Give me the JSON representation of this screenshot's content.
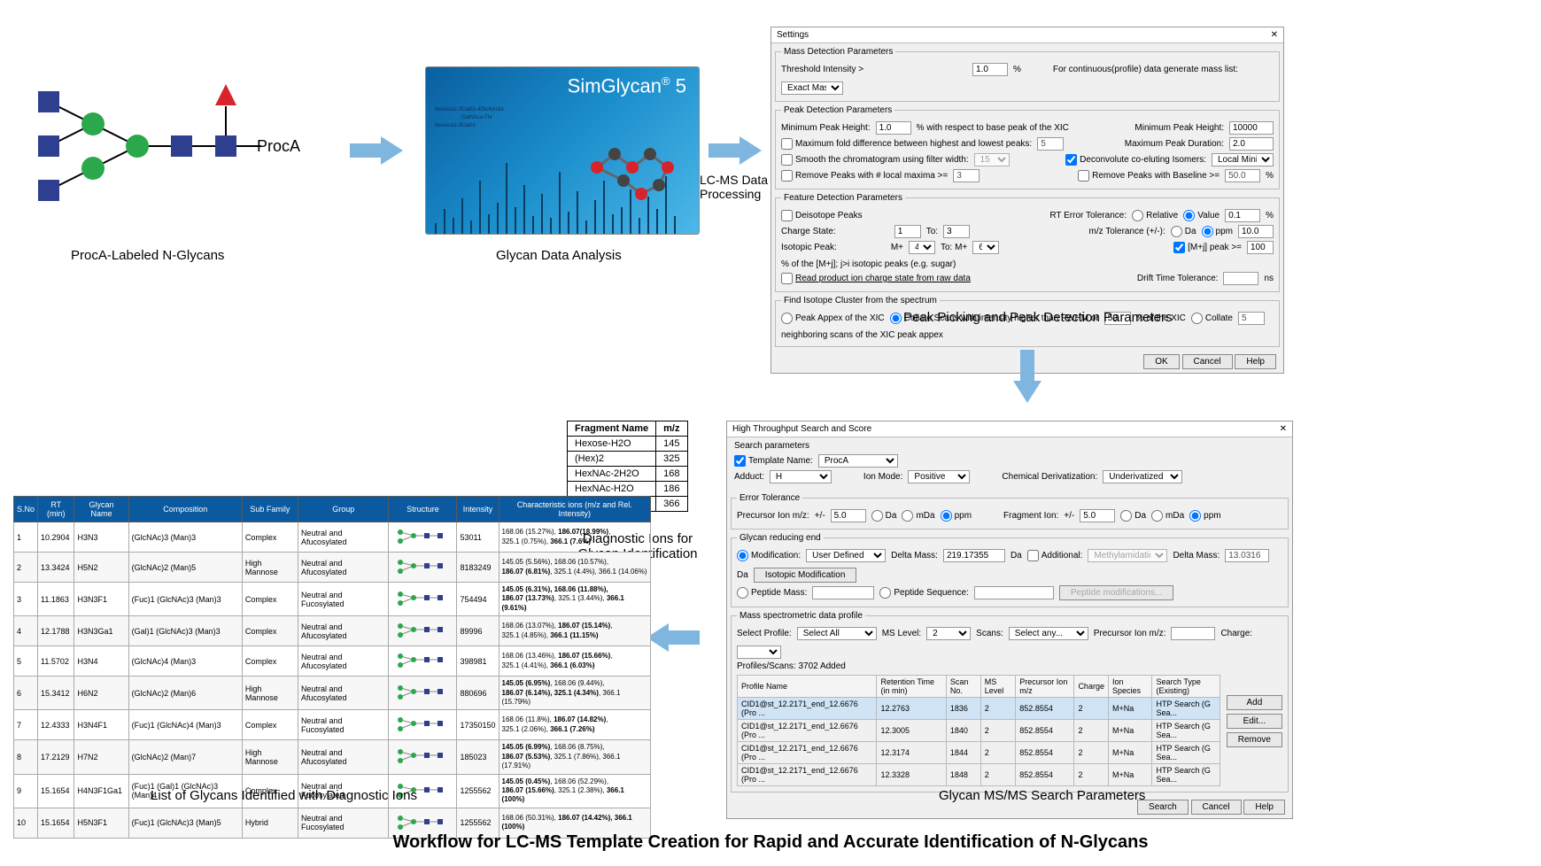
{
  "colors": {
    "hexnac": "#2e3f8f",
    "hex": "#2aa84b",
    "fuc": "#d8232a",
    "arrow": "#7fb6df",
    "dialog_bg": "#f0f0f0",
    "header": "#0b5aa0"
  },
  "title_main": "Workflow for LC-MS Template Creation for Rapid and Accurate Identification of N-Glycans",
  "proca": {
    "label": "ProcA",
    "caption": "ProcA-Labeled N-Glycans"
  },
  "simglycan": {
    "title_a": "SimGlycan",
    "title_b": "5",
    "reg": "®",
    "ms_labels": [
      "NeuAca2-3Galb1-4GlcNAcb1",
      "NeuAca2-3Galb1",
      "GalNAca-Thr"
    ],
    "bars": [
      12,
      28,
      18,
      40,
      15,
      60,
      22,
      35,
      80,
      30,
      55,
      20,
      45,
      18,
      70,
      25,
      48,
      15,
      38,
      60,
      22,
      30,
      50,
      18,
      42,
      28,
      65,
      20
    ],
    "caption": "Glycan Data Analysis",
    "mol_atoms": [
      [
        20,
        40
      ],
      [
        40,
        25
      ],
      [
        60,
        40
      ],
      [
        80,
        25
      ],
      [
        100,
        40
      ],
      [
        90,
        60
      ],
      [
        70,
        70
      ],
      [
        50,
        55
      ]
    ]
  },
  "lcms_label": "LC-MS Data Processing",
  "settings": {
    "title": "Settings",
    "mass_det": {
      "legend": "Mass Detection Parameters",
      "thresh_lbl": "Threshold Intensity  >",
      "thresh_val": "1.0",
      "thresh_unit": "%",
      "cont_lbl": "For continuous(profile) data generate mass list:",
      "cont_val": "Exact Mass"
    },
    "peak_det": {
      "legend": "Peak Detection Parameters",
      "r1": {
        "a": "Minimum Peak Height:",
        "av": "1.0",
        "au": "% with respect to base peak of the XIC",
        "b": "Minimum Peak Height:",
        "bv": "10000"
      },
      "r2": {
        "a": "Maximum fold difference between highest and lowest peaks:",
        "av": "5",
        "b": "Maximum Peak Duration:",
        "bv": "2.0"
      },
      "r3": {
        "a": "Smooth the chromatogram using filter width:",
        "av": "15",
        "b": "Deconvolute co-eluting Isomers:",
        "bv": "Local Minima"
      },
      "r4": {
        "a": "Remove Peaks with # local maxima  >=",
        "av": "3",
        "b": "Remove Peaks with Baseline  >=",
        "bv": "50.0",
        "bu": "%"
      }
    },
    "feat_det": {
      "legend": "Feature Detection Parameters",
      "deiso": "Deisotope Peaks",
      "rt_err": "RT Error Tolerance:",
      "rel": "Relative",
      "val": "Value",
      "rt_v": "0.1",
      "rt_u": "%",
      "chg": "Charge State:",
      "chg_a": "1",
      "chg_to": "To:",
      "chg_b": "3",
      "mz": "m/z Tolerance (+/-):",
      "da": "Da",
      "ppm": "ppm",
      "mz_v": "10.0",
      "iso": "Isotopic Peak:",
      "iso_a": "M+",
      "iso_av": "4",
      "iso_b": "To: M+",
      "iso_bv": "6",
      "mj": "[M+j] peak >=",
      "mj_v": "100",
      "mj_u": "% of the [M+j]; j>i isotopic peaks (e.g. sugar)",
      "read": "Read product ion charge state from raw data",
      "drift": "Drift Time Tolerance:",
      "drift_u": "ns"
    },
    "cluster": {
      "legend": "Find Isotope Cluster from the spectrum",
      "a": "Peak Appex of the XIC",
      "b": "Collate Scans with intensity higher than FWHM or",
      "bv": "50",
      "bu": "% of the XIC",
      "c": "Collate",
      "cv": "5",
      "cu": "neighboring scans of the XIC peak appex"
    },
    "buttons": {
      "ok": "OK",
      "cancel": "Cancel",
      "help": "Help"
    },
    "caption": "Peak Picking and Peak Detection Parameters"
  },
  "htp": {
    "title": "High Throughput Search and Score",
    "search_params": "Search parameters",
    "tmpl": "Template Name:",
    "tmpl_v": "ProcA",
    "adduct": "Adduct:",
    "adduct_v": "H",
    "ionmode": "Ion Mode:",
    "ionmode_v": "Positive",
    "chemder": "Chemical Derivatization:",
    "chemder_v": "Underivatized",
    "err": {
      "legend": "Error Tolerance",
      "pre": "Precursor Ion m/z:",
      "pm": "+/-",
      "pre_v": "5.0",
      "da": "Da",
      "mda": "mDa",
      "ppm": "ppm",
      "frag": "Fragment Ion:",
      "frag_v": "5.0"
    },
    "gly": {
      "legend": "Glycan reducing end",
      "mod": "Modification:",
      "mod_v": "User Defined",
      "dm": "Delta Mass:",
      "dm_v": "219.17355",
      "da": "Da",
      "add": "Additional:",
      "add_v": "Methylamidation",
      "dm2_v": "13.0316",
      "iso": "Isotopic Modification",
      "pep": "Peptide Mass:",
      "pseq": "Peptide Sequence:",
      "pmod": "Peptide modifications..."
    },
    "msdp": {
      "legend": "Mass spectrometric data profile",
      "sel": "Select Profile:",
      "sel_v": "Select All",
      "msl": "MS Level:",
      "msl_v": "2",
      "scans": "Scans:",
      "scans_v": "Select any...",
      "pre": "Precursor Ion m/z:",
      "chg": "Charge:",
      "added": "Profiles/Scans:  3702 Added"
    },
    "tbl": {
      "headers": [
        "Profile Name",
        "Retention Time (in min)",
        "Scan No.",
        "MS Level",
        "Precursor Ion m/z",
        "Charge",
        "Ion Species",
        "Search Type (Existing)"
      ],
      "rows": [
        [
          "CID1@st_12.2171_end_12.6676 (Pro ...",
          "12.2763",
          "1836",
          "2",
          "852.8554",
          "2",
          "M+Na",
          "HTP Search (G Sea..."
        ],
        [
          "CID1@st_12.2171_end_12.6676 (Pro ...",
          "12.3005",
          "1840",
          "2",
          "852.8554",
          "2",
          "M+Na",
          "HTP Search (G Sea..."
        ],
        [
          "CID1@st_12.2171_end_12.6676 (Pro ...",
          "12.3174",
          "1844",
          "2",
          "852.8554",
          "2",
          "M+Na",
          "HTP Search (G Sea..."
        ],
        [
          "CID1@st_12.2171_end_12.6676 (Pro ...",
          "12.3328",
          "1848",
          "2",
          "852.8554",
          "2",
          "M+Na",
          "HTP Search (G Sea..."
        ]
      ]
    },
    "sidebtns": {
      "add": "Add",
      "edit": "Edit...",
      "remove": "Remove"
    },
    "buttons": {
      "search": "Search",
      "cancel": "Cancel",
      "help": "Help"
    },
    "caption": "Glycan MS/MS Search Parameters"
  },
  "diag": {
    "headers": [
      "Fragment Name",
      "m/z"
    ],
    "rows": [
      [
        "Hexose-H2O",
        "145"
      ],
      [
        "(Hex)2",
        "325"
      ],
      [
        "HexNAc-2H2O",
        "168"
      ],
      [
        "HexNAc-H2O",
        "186"
      ],
      [
        "HexHexNAc",
        "366"
      ]
    ],
    "caption": "Diagnostic Ions for Glycan Identification"
  },
  "results": {
    "headers": [
      "S.No",
      "RT (min)",
      "Glycan Name",
      "Composition",
      "Sub Family",
      "Group",
      "Structure",
      "Intensity",
      "Characteristic ions (m/z and Rel. Intensity)"
    ],
    "rows": [
      {
        "n": "1",
        "rt": "10.2904",
        "gn": "H3N3",
        "comp": "(GlcNAc)3 (Man)3",
        "sf": "Complex",
        "grp": "Neutral and Afucosylated",
        "int": "53011",
        "ions": "168.06 (15.27%), <b>186.07(18.99%)</b>,<br>325.1 (0.75%), <b>366.1 (7.6%)</b>"
      },
      {
        "n": "2",
        "rt": "13.3424",
        "gn": "H5N2",
        "comp": "(GlcNAc)2 (Man)5",
        "sf": "High Mannose",
        "grp": "Neutral and Afucosylated",
        "int": "8183249",
        "ions": "145.05 (5.56%), 168.06 (10.57%),<br><b>186.07 (6.81%)</b>, 325.1 (4.4%), 366.1 (14.06%)"
      },
      {
        "n": "3",
        "rt": "11.1863",
        "gn": "H3N3F1",
        "comp": "(Fuc)1 (GlcNAc)3 (Man)3",
        "sf": "Complex",
        "grp": "Neutral and Fucosylated",
        "int": "754494",
        "ions": "<b>145.05 (6.31%), 168.06 (11.88%),<br>186.07 (13.73%)</b>, 325.1 (3.44%), <b>366.1 (9.61%)</b>"
      },
      {
        "n": "4",
        "rt": "12.1788",
        "gn": "H3N3Ga1",
        "comp": "(Gal)1 (GlcNAc)3 (Man)3",
        "sf": "Complex",
        "grp": "Neutral and Afucosylated",
        "int": "89996",
        "ions": "168.06 (13.07%), <b>186.07 (15.14%)</b>,<br>325.1 (4.85%), <b>366.1 (11.15%)</b>"
      },
      {
        "n": "5",
        "rt": "11.5702",
        "gn": "H3N4",
        "comp": "(GlcNAc)4 (Man)3",
        "sf": "Complex",
        "grp": "Neutral and Afucosylated",
        "int": "398981",
        "ions": "168.06 (13.46%), <b>186.07 (15.66%)</b>,<br>325.1 (4.41%), <b>366.1 (6.03%)</b>"
      },
      {
        "n": "6",
        "rt": "15.3412",
        "gn": "H6N2",
        "comp": "(GlcNAc)2 (Man)6",
        "sf": "High Mannose",
        "grp": "Neutral and Afucosylated",
        "int": "880696",
        "ions": "<b>145.05 (6.95%)</b>, 168.06 (9.44%),<br><b>186.07 (6.14%), 325.1 (4.34%)</b>, 366.1 (15.79%)"
      },
      {
        "n": "7",
        "rt": "12.4333",
        "gn": "H3N4F1",
        "comp": "(Fuc)1 (GlcNAc)4 (Man)3",
        "sf": "Complex",
        "grp": "Neutral and Fucosylated",
        "int": "17350150",
        "ions": "168.06 (11.8%), <b>186.07 (14.82%)</b>,<br>325.1 (2.06%), <b>366.1 (7.26%)</b>"
      },
      {
        "n": "8",
        "rt": "17.2129",
        "gn": "H7N2",
        "comp": "(GlcNAc)2 (Man)7",
        "sf": "High Mannose",
        "grp": "Neutral and Afucosylated",
        "int": "185023",
        "ions": "<b>145.05 (6.99%)</b>, 168.06 (8.75%),<br><b>186.07 (5.53%)</b>, 325.1 (7.86%), 366.1 (17.91%)"
      },
      {
        "n": "9",
        "rt": "15.1654",
        "gn": "H4N3F1Ga1",
        "comp": "(Fuc)1 (Gal)1 (GlcNAc)3 (Man)4",
        "sf": "Complex",
        "grp": "Neutral and Fucosylated",
        "int": "1255562",
        "ions": "<b>145.05 (0.45%)</b>, 168.06 (52.29%),<br><b>186.07 (15.66%)</b>, 325.1 (2.38%), <b>366.1 (100%)</b>"
      },
      {
        "n": "10",
        "rt": "15.1654",
        "gn": "H5N3F1",
        "comp": "(Fuc)1 (GlcNAc)3 (Man)5",
        "sf": "Hybrid",
        "grp": "Neutral and Fucosylated",
        "int": "1255562",
        "ions": "168.06 (50.31%), <b>186.07 (14.42%), 366.1 (100%)</b>"
      }
    ],
    "caption": "List of Glycans Identified with Diagnostic Ions"
  }
}
